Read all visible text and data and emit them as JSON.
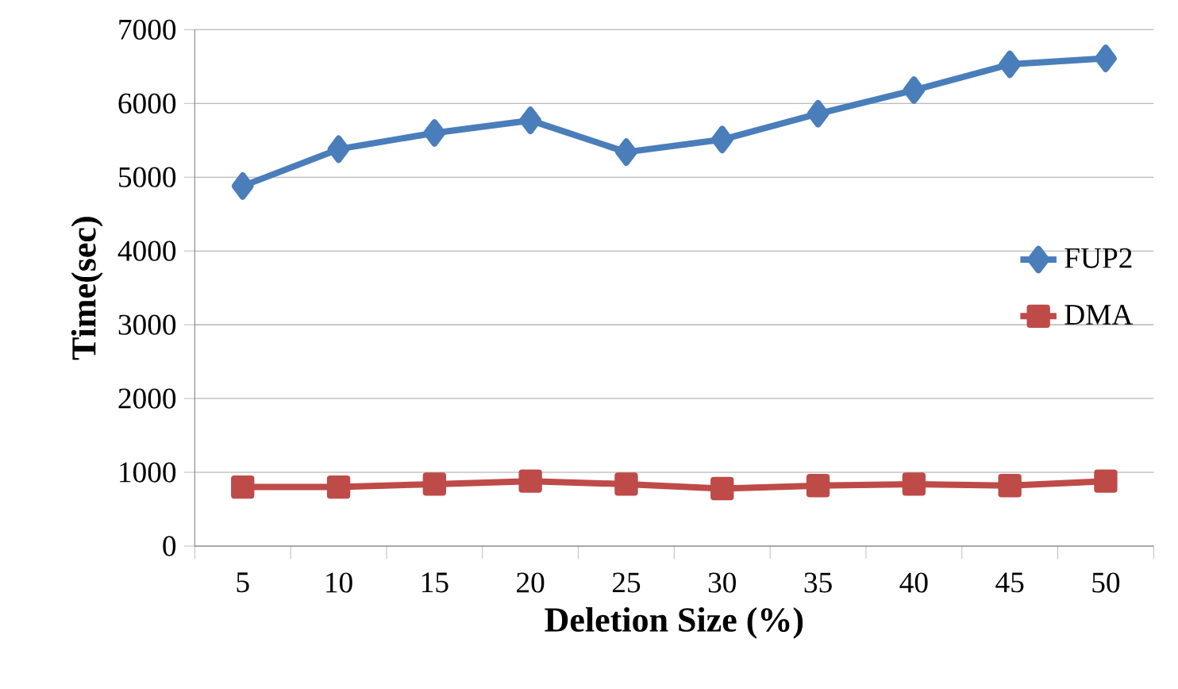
{
  "chart_data": {
    "type": "line",
    "xlabel": "Deletion Size (%)",
    "ylabel": "Time(sec)",
    "categories": [
      "5",
      "10",
      "15",
      "20",
      "25",
      "30",
      "35",
      "40",
      "45",
      "50"
    ],
    "series": [
      {
        "name": "FUP2",
        "color": "#4a7ebb",
        "marker": "diamond",
        "values": [
          4880,
          5380,
          5600,
          5770,
          5340,
          5510,
          5860,
          6180,
          6530,
          6610
        ]
      },
      {
        "name": "DMA",
        "color": "#be4b48",
        "marker": "square",
        "values": [
          800,
          800,
          840,
          880,
          840,
          780,
          820,
          840,
          820,
          880
        ]
      }
    ],
    "ylim": [
      0,
      7000
    ],
    "yticks": [
      0,
      1000,
      2000,
      3000,
      4000,
      5000,
      6000,
      7000
    ],
    "grid": "y",
    "legend": "right"
  }
}
